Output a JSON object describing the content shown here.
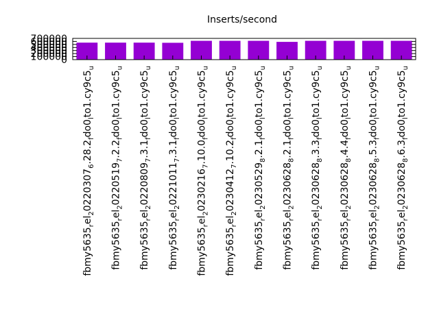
{
  "chart_data": {
    "type": "bar",
    "title": "Inserts/second",
    "xlabel": "",
    "ylabel": "",
    "ylim": [
      0,
      700000
    ],
    "yticks": [
      0,
      100000,
      200000,
      300000,
      400000,
      500000,
      600000,
      700000
    ],
    "grid": false,
    "legend": "none",
    "bar_color": "#9400d3",
    "categories": [
      "fbmy5635_rel_20220307_6.28.2_fdo0_lto1.cy9c5_u",
      "fbmy5635_rel_20220519_7.2.2_fdo0_lto1.cy9c5_u",
      "fbmy5635_rel_20220809_7.3.1_fdo0_lto1.cy9c5_u",
      "fbmy5635_rel_20221011_7.3.1_fdo0_lto1.cy9c5_u",
      "fbmy5635_rel_20230216_7.10.0_fdo0_lto1.cy9c5_u",
      "fbmy5635_rel_20230412_7.10.2_fdo0_lto1.cy9c5_u",
      "fbmy5635_rel_20230529_8.2.1_fdo0_lto1.cy9c5_u",
      "fbmy5635_rel_20230628_8.2.1_fdo0_lto1.cy9c5_u",
      "fbmy5635_rel_20230628_8.3.3_fdo0_lto1.cy9c5_u",
      "fbmy5635_rel_20230628_8.4.4_fdo0_lto1.cy9c5_u",
      "fbmy5635_rel_20230628_8.5.3_fdo0_lto1.cy9c5_u",
      "fbmy5635_rel_20230628_8.6.3_fdo0_lto1.cy9c5_u"
    ],
    "values": [
      560000,
      560000,
      560000,
      555000,
      620000,
      620000,
      620000,
      585000,
      620000,
      620000,
      620000,
      620000
    ]
  }
}
